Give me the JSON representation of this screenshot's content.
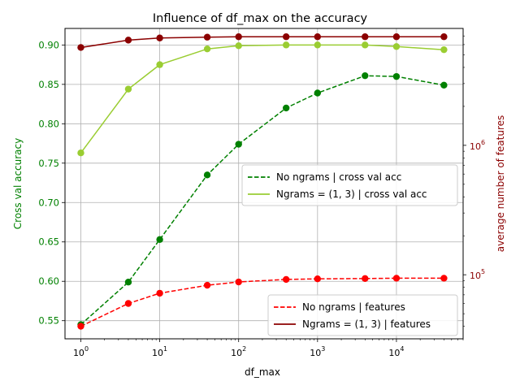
{
  "chart_data": {
    "type": "line",
    "title": "Influence of df_max on the accuracy",
    "xlabel": "df_max",
    "ylabel_left": "Cross val accuracy",
    "ylabel_right": "average number of features",
    "x_scale": "log",
    "y_right_scale": "log",
    "grid": true,
    "xlim": [
      0.63,
      70000
    ],
    "ylim_left": [
      0.527,
      0.921
    ],
    "ylim_right": [
      32000,
      8000000
    ],
    "x": [
      1,
      4,
      10,
      40,
      100,
      400,
      1000,
      4000,
      10000,
      40000
    ],
    "x_ticks": [
      {
        "value": 1,
        "base": "10",
        "exp": "0"
      },
      {
        "value": 10,
        "base": "10",
        "exp": "1"
      },
      {
        "value": 100,
        "base": "10",
        "exp": "2"
      },
      {
        "value": 1000,
        "base": "10",
        "exp": "3"
      },
      {
        "value": 10000,
        "base": "10",
        "exp": "4"
      }
    ],
    "y_left_ticks": [
      "0.55",
      "0.60",
      "0.65",
      "0.70",
      "0.75",
      "0.80",
      "0.85",
      "0.90"
    ],
    "y_right_ticks": [
      {
        "value": 100000,
        "base": "10",
        "exp": "5"
      },
      {
        "value": 1000000,
        "base": "10",
        "exp": "6"
      }
    ],
    "colors": {
      "no_ngrams_acc": "#008000",
      "ngrams_acc": "#9acd32",
      "no_ngrams_feat": "#ff0000",
      "ngrams_feat": "#8b0000",
      "left_axis_label": "#008000",
      "right_axis_label": "#8b0000"
    },
    "series_left": [
      {
        "name": "No ngrams | cross val acc",
        "style": "dashed",
        "color_key": "no_ngrams_acc",
        "values": [
          0.545,
          0.599,
          0.653,
          0.735,
          0.774,
          0.82,
          0.839,
          0.861,
          0.86,
          0.849
        ]
      },
      {
        "name": "Ngrams = (1, 3) | cross val acc",
        "style": "solid",
        "color_key": "ngrams_acc",
        "values": [
          0.763,
          0.844,
          0.875,
          0.895,
          0.899,
          0.9,
          0.9,
          0.9,
          0.898,
          0.894
        ]
      }
    ],
    "series_right": [
      {
        "name": "No ngrams | features",
        "style": "dashed",
        "color_key": "no_ngrams_feat",
        "values": [
          40000,
          60000,
          72000,
          83000,
          88000,
          92000,
          93000,
          93500,
          94000,
          94000
        ]
      },
      {
        "name": "Ngrams = (1, 3) | features",
        "style": "solid",
        "color_key": "ngrams_feat",
        "values": [
          5700000,
          6500000,
          6750000,
          6850000,
          6900000,
          6900000,
          6900000,
          6900000,
          6900000,
          6900000
        ]
      }
    ],
    "legend_upper": {
      "placement": "center-right",
      "entries": [
        "No ngrams | cross val acc",
        "Ngrams = (1, 3) | cross val acc"
      ]
    },
    "legend_lower": {
      "placement": "bottom-right",
      "entries": [
        "No ngrams | features",
        "Ngrams = (1, 3) | features"
      ]
    }
  }
}
